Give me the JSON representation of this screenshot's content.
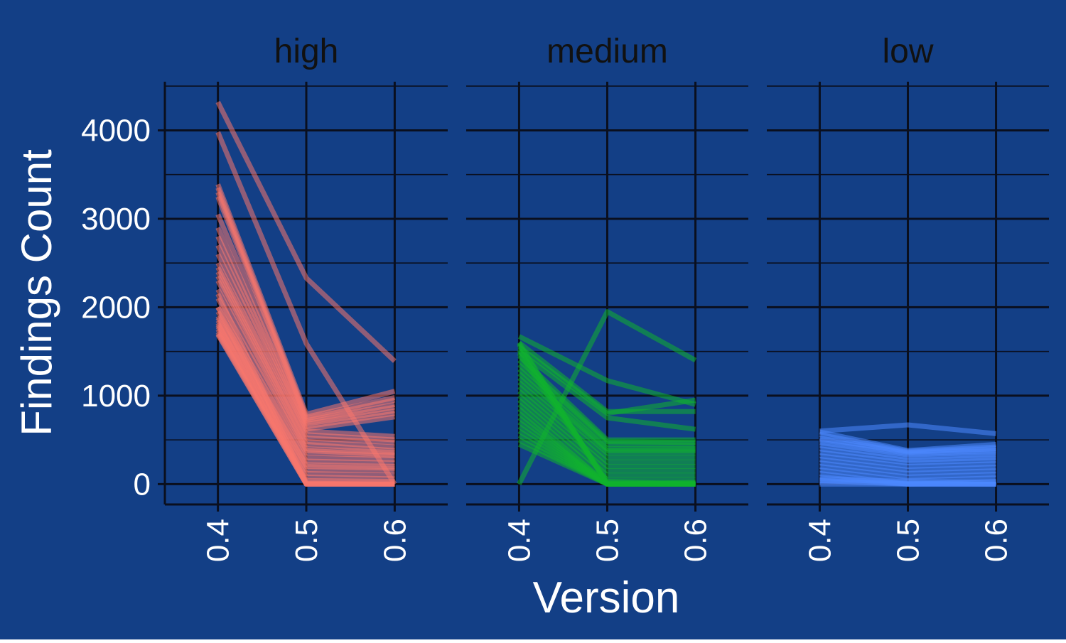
{
  "chart_data": {
    "type": "line",
    "facets": [
      "high",
      "medium",
      "low"
    ],
    "xlabel": "Version",
    "ylabel": "Findings Count",
    "x_ticks": [
      "0.4",
      "0.5",
      "0.6"
    ],
    "y_ticks": [
      0,
      1000,
      2000,
      3000,
      4000
    ],
    "ylim": [
      -230,
      4550
    ],
    "xlim": [
      0.34,
      0.66
    ],
    "grid": true,
    "legend": "none",
    "colors": {
      "background": "#133f86",
      "grid": "#0a0f1e",
      "text_light": "#ffffff",
      "strip_text": "#111111",
      "high": "#f8766d",
      "medium": "#11b32e",
      "low": "#4d88ff"
    },
    "series_groups": [
      {
        "facet": "high",
        "color": "#f8766d",
        "x": [
          0.4,
          0.5,
          0.6
        ],
        "lines": [
          [
            4320,
            2330,
            1390
          ],
          [
            3980,
            1590,
            0
          ],
          [
            3390,
            790,
            1050
          ],
          [
            3350,
            760,
            980
          ],
          [
            3300,
            740,
            950
          ],
          [
            3250,
            720,
            900
          ],
          [
            3050,
            700,
            870
          ],
          [
            2900,
            680,
            830
          ],
          [
            2800,
            650,
            800
          ],
          [
            2700,
            620,
            760
          ],
          [
            2600,
            600,
            540
          ],
          [
            2500,
            560,
            500
          ],
          [
            2450,
            520,
            470
          ],
          [
            2400,
            480,
            420
          ],
          [
            2350,
            450,
            380
          ],
          [
            2300,
            400,
            360
          ],
          [
            2200,
            380,
            330
          ],
          [
            2100,
            350,
            320
          ],
          [
            2000,
            300,
            280
          ],
          [
            1950,
            260,
            240
          ],
          [
            1900,
            220,
            200
          ],
          [
            1880,
            200,
            180
          ],
          [
            1850,
            160,
            150
          ],
          [
            1800,
            120,
            100
          ],
          [
            1780,
            80,
            60
          ],
          [
            1750,
            40,
            30
          ],
          [
            1720,
            20,
            10
          ],
          [
            1700,
            0,
            0
          ],
          [
            1690,
            0,
            0
          ],
          [
            2000,
            0,
            0
          ],
          [
            1820,
            0,
            0
          ],
          [
            2150,
            10,
            0
          ]
        ]
      },
      {
        "facet": "medium",
        "color": "#11b32e",
        "x": [
          0.4,
          0.5,
          0.6
        ],
        "lines": [
          [
            0,
            1950,
            1400
          ],
          [
            1670,
            1170,
            900
          ],
          [
            1600,
            820,
            820
          ],
          [
            1550,
            800,
            950
          ],
          [
            1500,
            750,
            620
          ],
          [
            1450,
            500,
            500
          ],
          [
            1400,
            480,
            470
          ],
          [
            1350,
            450,
            440
          ],
          [
            1300,
            400,
            400
          ],
          [
            1250,
            380,
            380
          ],
          [
            1200,
            350,
            350
          ],
          [
            1150,
            300,
            300
          ],
          [
            1100,
            250,
            250
          ],
          [
            1050,
            200,
            200
          ],
          [
            1000,
            150,
            150
          ],
          [
            950,
            100,
            100
          ],
          [
            900,
            50,
            50
          ],
          [
            850,
            0,
            0
          ],
          [
            800,
            0,
            0
          ],
          [
            750,
            0,
            0
          ],
          [
            700,
            0,
            0
          ],
          [
            650,
            0,
            0
          ],
          [
            600,
            0,
            0
          ],
          [
            550,
            0,
            0
          ],
          [
            500,
            0,
            0
          ],
          [
            450,
            0,
            0
          ],
          [
            1600,
            0,
            0
          ],
          [
            1580,
            0,
            20
          ],
          [
            1520,
            30,
            0
          ],
          [
            1480,
            10,
            10
          ]
        ]
      },
      {
        "facet": "low",
        "color": "#4d88ff",
        "x": [
          0.4,
          0.5,
          0.6
        ],
        "lines": [
          [
            600,
            670,
            570
          ],
          [
            590,
            380,
            450
          ],
          [
            560,
            370,
            420
          ],
          [
            520,
            360,
            400
          ],
          [
            500,
            350,
            380
          ],
          [
            470,
            330,
            360
          ],
          [
            440,
            300,
            330
          ],
          [
            400,
            270,
            300
          ],
          [
            360,
            240,
            270
          ],
          [
            320,
            200,
            230
          ],
          [
            280,
            160,
            190
          ],
          [
            240,
            120,
            150
          ],
          [
            200,
            80,
            110
          ],
          [
            160,
            40,
            70
          ],
          [
            120,
            0,
            30
          ],
          [
            80,
            0,
            0
          ],
          [
            40,
            0,
            0
          ],
          [
            0,
            0,
            0
          ],
          [
            20,
            10,
            0
          ],
          [
            60,
            30,
            20
          ]
        ]
      }
    ]
  }
}
